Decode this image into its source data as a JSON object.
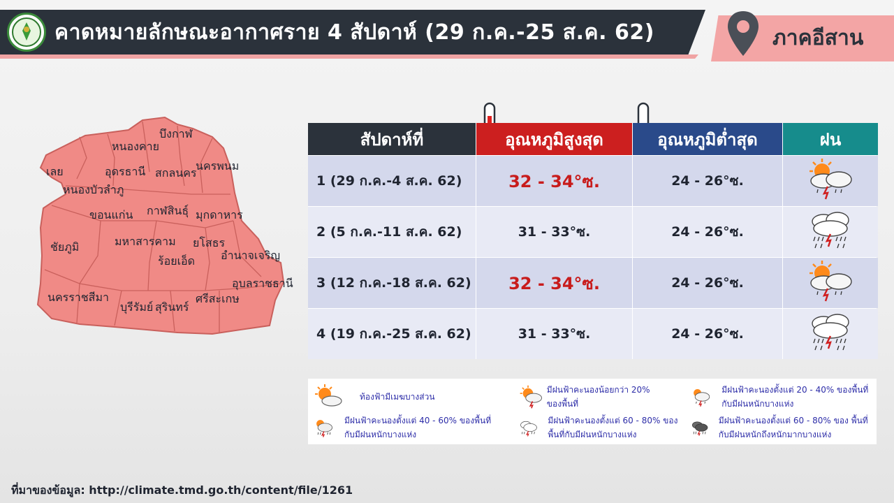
{
  "header": {
    "title": "คาดหมายลักษณะอากาศราย 4 สัปดาห์ (29 ก.ค.-25 ส.ค. 62)",
    "region": "ภาคอีสาน"
  },
  "map": {
    "provinces": [
      "บึงกาฬ",
      "หนองคาย",
      "เลย",
      "อุดรธานี",
      "สกลนคร",
      "นครพนม",
      "หนองบัวลำภู",
      "ขอนแก่น",
      "กาฬสินธุ์",
      "มุกดาหาร",
      "ชัยภูมิ",
      "มหาสารคาม",
      "ยโสธร",
      "อำนาจเจริญ",
      "ร้อยเอ็ด",
      "อุบลราชธานี",
      "นครราชสีมา",
      "บุรีรัมย์",
      "สุรินทร์",
      "ศรีสะเกษ"
    ]
  },
  "table": {
    "headers": {
      "week": "สัปดาห์ที่",
      "high": "อุณหภูมิสูงสุด",
      "low": "อุณหภูมิต่ำสุด",
      "rain": "ฝน"
    },
    "rows": [
      {
        "week": "1 (29 ก.ค.-4 ส.ค. 62)",
        "high": "32 - 34°ซ.",
        "low": "24 - 26°ซ.",
        "icon": "sun-cloud-storm-icon"
      },
      {
        "week": "2 (5 ก.ค.-11 ส.ค. 62)",
        "high": "31 - 33°ซ.",
        "low": "24 - 26°ซ.",
        "icon": "heavy-rain-storm-icon"
      },
      {
        "week": "3 (12 ก.ค.-18 ส.ค. 62)",
        "high": "32 - 34°ซ.",
        "low": "24 - 26°ซ.",
        "icon": "sun-cloud-storm-icon"
      },
      {
        "week": "4 (19 ก.ค.-25 ส.ค. 62)",
        "high": "31 - 33°ซ.",
        "low": "24 - 26°ซ.",
        "icon": "heavy-rain-storm-icon"
      }
    ]
  },
  "legend": {
    "items": [
      {
        "text": "ท้องฟ้ามีเมฆบางส่วน",
        "icon": "partly-cloudy-icon"
      },
      {
        "text": "มีฝนฟ้าคะนองน้อยกว่า 20% ของพื้นที่",
        "icon": "light-storm-icon"
      },
      {
        "text": "มีฝนฟ้าคะนองตั้งแต่ 20 - 40% ของพื้นที่ กับมีฝนหนักบางแห่ง",
        "icon": "storm-20-40-icon"
      },
      {
        "text": "มีฝนฟ้าคะนองตั้งแต่ 40 - 60% ของพื้นที่ กับมีฝนหนักบางแห่ง",
        "icon": "storm-40-60-icon"
      },
      {
        "text": "มีฝนฟ้าคะนองตั้งแต่ 60 - 80% ของพื้นที่กับมีฝนหนักบางแห่ง",
        "icon": "storm-60-80-icon"
      },
      {
        "text": "มีฝนฟ้าคะนองตั้งแต่ 60 - 80% ของ พื้นที่ กับมีฝนหนักถึงหนักมากบางแห่ง",
        "icon": "storm-heavy-icon"
      }
    ]
  },
  "footer": {
    "source": "ที่มาของข้อมูล: http://climate.tmd.go.th/content/file/1261"
  },
  "colors": {
    "header_dark": "#2b323b",
    "region_pink": "#f3a5a5",
    "map_fill": "#f08a86",
    "hot_red": "#c81c1c",
    "high_header": "#cc1f1f",
    "low_header": "#2a4a8a",
    "rain_header": "#168c8c"
  }
}
